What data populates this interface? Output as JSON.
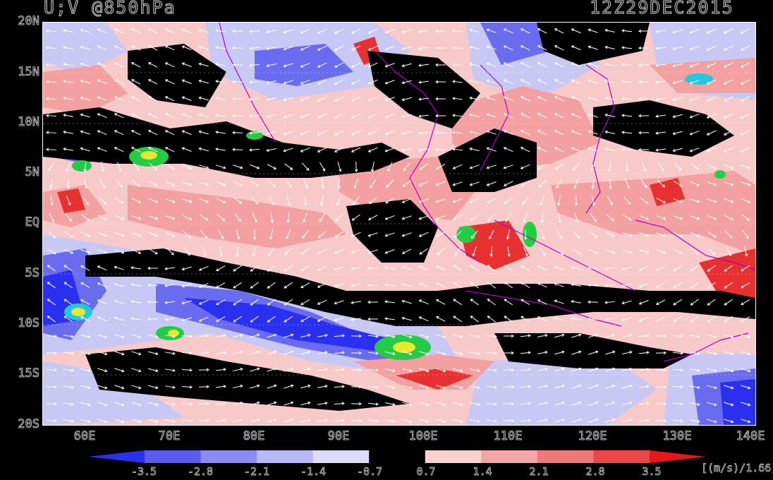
{
  "header": {
    "title_left": "U;V @850hPa",
    "title_right": "12Z29DEC2015"
  },
  "axes": {
    "y_labels": [
      "20N",
      "15N",
      "10N",
      "5N",
      "EQ",
      "5S",
      "10S",
      "15S",
      "20S"
    ],
    "x_labels": [
      "60E",
      "70E",
      "80E",
      "90E",
      "100E",
      "110E",
      "120E",
      "130E",
      "140E"
    ],
    "lon_range": [
      56,
      140
    ],
    "lat_range": [
      -20,
      20
    ]
  },
  "colorbar": {
    "levels": [
      "-3.5",
      "-2.8",
      "-2.1",
      "-1.4",
      "-0.7",
      "0.7",
      "1.4",
      "2.1",
      "2.8",
      "3.5"
    ],
    "colors": [
      "#2a2ff0",
      "#5a5cf0",
      "#8a8cf3",
      "#b7b8f6",
      "#dcdcf9",
      "#000000",
      "#f8d0d0",
      "#f4a6a6",
      "#f07878",
      "#ec4646",
      "#e81616"
    ],
    "units": "[(m/s)/1.66]"
  },
  "map_colors": {
    "black_band": "#000000",
    "light_pink": "#f7c9c9",
    "pink": "#f2a0a0",
    "red": "#e83030",
    "light_blue": "#c8c8f5",
    "blue": "#6a6cf0",
    "deep_blue": "#2a2ff0",
    "coast": "#b000c8",
    "green": "#22cc44",
    "yellow": "#e8e830",
    "cyan": "#20c8e0"
  }
}
